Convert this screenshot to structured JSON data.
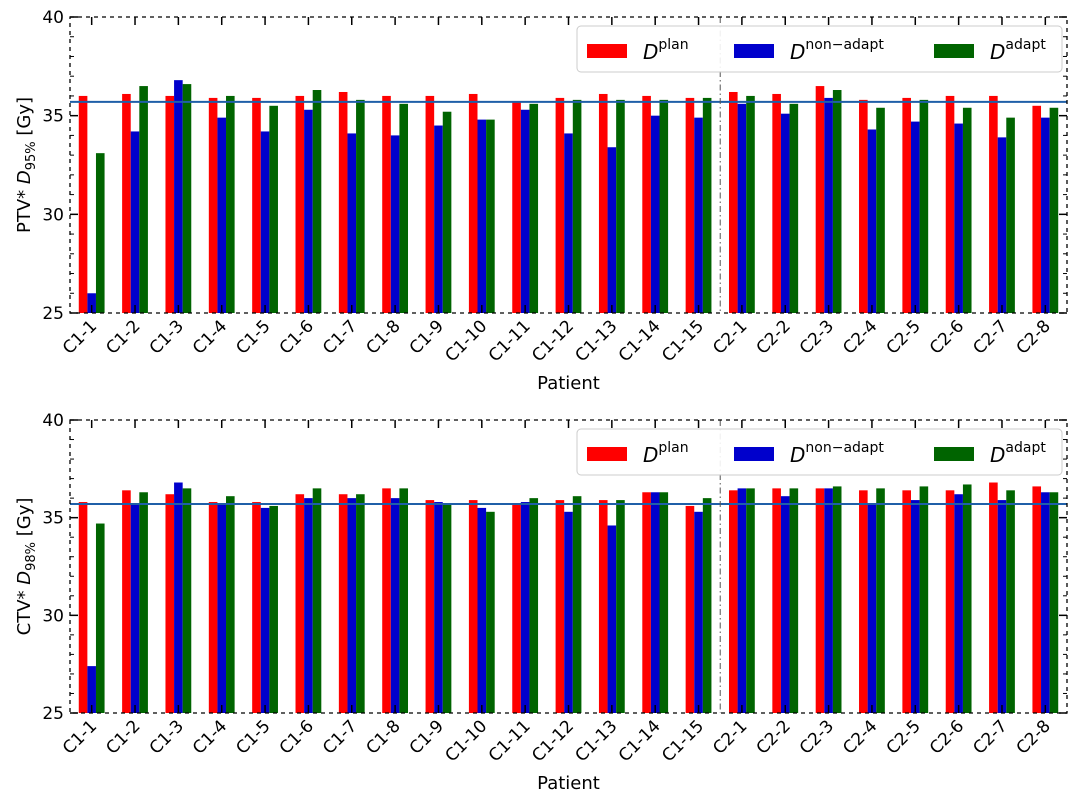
{
  "chart_data": [
    {
      "type": "bar",
      "ylabel_main": "PTV* D",
      "ylabel_sub": "95%",
      "ylabel_unit": " [Gy]",
      "xlabel": "Patient",
      "ylim": [
        25,
        40
      ],
      "yticks": [
        25,
        30,
        35,
        40
      ],
      "reference_line": 35.7,
      "categories": [
        "C1-1",
        "C1-2",
        "C1-3",
        "C1-4",
        "C1-5",
        "C1-6",
        "C1-7",
        "C1-8",
        "C1-9",
        "C1-10",
        "C1-11",
        "C1-12",
        "C1-13",
        "C1-14",
        "C1-15",
        "C2-1",
        "C2-2",
        "C2-3",
        "C2-4",
        "C2-5",
        "C2-6",
        "C2-7",
        "C2-8"
      ],
      "series": [
        {
          "name_base": "D",
          "name_sup": "plan",
          "color": "#ff0000",
          "values": [
            36.0,
            36.1,
            36.0,
            35.9,
            35.9,
            36.0,
            36.2,
            36.0,
            36.0,
            36.1,
            35.7,
            35.9,
            36.1,
            36.0,
            35.9,
            36.2,
            36.1,
            36.5,
            35.8,
            35.9,
            36.0,
            36.0,
            35.5
          ]
        },
        {
          "name_base": "D",
          "name_sup": "non−adapt",
          "color": "#0000cc",
          "values": [
            26.0,
            34.2,
            36.8,
            34.9,
            34.2,
            35.3,
            34.1,
            34.0,
            34.5,
            34.8,
            35.3,
            34.1,
            33.4,
            35.0,
            34.9,
            35.6,
            35.1,
            35.9,
            34.3,
            34.7,
            34.6,
            33.9,
            34.9
          ]
        },
        {
          "name_base": "D",
          "name_sup": "adapt",
          "color": "#006400",
          "values": [
            33.1,
            36.5,
            36.6,
            36.0,
            35.5,
            36.3,
            35.8,
            35.6,
            35.2,
            34.8,
            35.6,
            35.8,
            35.8,
            35.8,
            35.9,
            36.0,
            35.6,
            36.3,
            35.4,
            35.8,
            35.4,
            34.9,
            35.4
          ]
        }
      ],
      "legend_position": "upper-right",
      "grid": false,
      "group_divider_after": "C1-15"
    },
    {
      "type": "bar",
      "ylabel_main": "CTV* D",
      "ylabel_sub": "98%",
      "ylabel_unit": " [Gy]",
      "xlabel": "Patient",
      "ylim": [
        25,
        40
      ],
      "yticks": [
        25,
        30,
        35,
        40
      ],
      "reference_line": 35.7,
      "categories": [
        "C1-1",
        "C1-2",
        "C1-3",
        "C1-4",
        "C1-5",
        "C1-6",
        "C1-7",
        "C1-8",
        "C1-9",
        "C1-10",
        "C1-11",
        "C1-12",
        "C1-13",
        "C1-14",
        "C1-15",
        "C2-1",
        "C2-2",
        "C2-3",
        "C2-4",
        "C2-5",
        "C2-6",
        "C2-7",
        "C2-8"
      ],
      "series": [
        {
          "name_base": "D",
          "name_sup": "plan",
          "color": "#ff0000",
          "values": [
            35.8,
            36.4,
            36.2,
            35.8,
            35.8,
            36.2,
            36.2,
            36.5,
            35.9,
            35.9,
            35.7,
            35.9,
            35.9,
            36.3,
            35.6,
            36.4,
            36.5,
            36.5,
            36.4,
            36.4,
            36.4,
            36.8,
            36.6
          ]
        },
        {
          "name_base": "D",
          "name_sup": "non−adapt",
          "color": "#0000cc",
          "values": [
            27.4,
            35.7,
            36.8,
            35.7,
            35.5,
            36.0,
            36.0,
            36.0,
            35.8,
            35.5,
            35.8,
            35.3,
            34.6,
            36.3,
            35.3,
            36.5,
            36.1,
            36.5,
            35.7,
            35.9,
            36.2,
            35.9,
            36.3
          ]
        },
        {
          "name_base": "D",
          "name_sup": "adapt",
          "color": "#006400",
          "values": [
            34.7,
            36.3,
            36.5,
            36.1,
            35.6,
            36.5,
            36.2,
            36.5,
            35.7,
            35.3,
            36.0,
            36.1,
            35.9,
            36.3,
            36.0,
            36.5,
            36.5,
            36.6,
            36.5,
            36.6,
            36.7,
            36.4,
            36.3
          ]
        }
      ],
      "legend_position": "upper-right",
      "grid": false,
      "group_divider_after": "C1-15"
    }
  ],
  "colors": {
    "reference_line": "#1f5fa8",
    "divider": "#555555"
  }
}
